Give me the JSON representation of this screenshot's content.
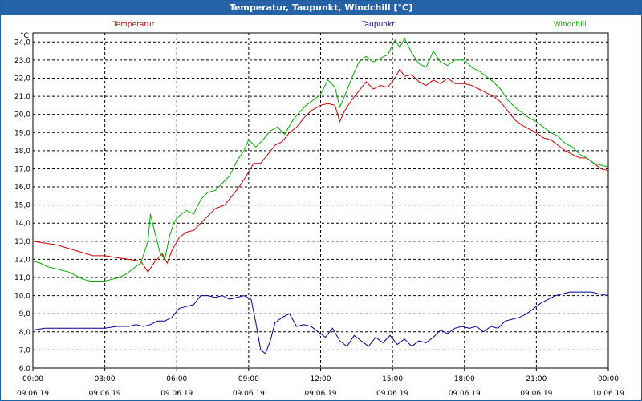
{
  "window": {
    "title": "Temperatur, Taupunkt, Windchill [°C]"
  },
  "chart_data": {
    "type": "line",
    "title": "Temperatur, Taupunkt, Windchill [°C]",
    "ylabel": "°C",
    "xlabel": "",
    "ylim": [
      6.0,
      24.5
    ],
    "xlim": [
      0,
      24
    ],
    "y_ticks": [
      "6,0",
      "7,0",
      "8,0",
      "9,0",
      "10,0",
      "11,0",
      "12,0",
      "13,0",
      "14,0",
      "15,0",
      "16,0",
      "17,0",
      "18,0",
      "19,0",
      "20,0",
      "21,0",
      "22,0",
      "23,0",
      "24,0"
    ],
    "x_ticks": [
      {
        "time": "00:00",
        "date": "09.06.19"
      },
      {
        "time": "03:00",
        "date": "09.06.19"
      },
      {
        "time": "06:00",
        "date": "09.06.19"
      },
      {
        "time": "09:00",
        "date": "09.06.19"
      },
      {
        "time": "12:00",
        "date": "09.06.19"
      },
      {
        "time": "15:00",
        "date": "09.06.19"
      },
      {
        "time": "18:00",
        "date": "09.06.19"
      },
      {
        "time": "21:00",
        "date": "09.06.19"
      },
      {
        "time": "00:00",
        "date": "10.06.19"
      }
    ],
    "grid": true,
    "series": [
      {
        "name": "Temperatur",
        "color": "#cc0000",
        "points": [
          [
            0,
            13.0
          ],
          [
            0.5,
            12.9
          ],
          [
            1,
            12.8
          ],
          [
            1.5,
            12.6
          ],
          [
            2,
            12.4
          ],
          [
            2.5,
            12.2
          ],
          [
            3,
            12.2
          ],
          [
            3.5,
            12.1
          ],
          [
            4,
            12.0
          ],
          [
            4.5,
            11.9
          ],
          [
            4.8,
            11.3
          ],
          [
            5.1,
            11.9
          ],
          [
            5.4,
            12.3
          ],
          [
            5.6,
            11.8
          ],
          [
            5.8,
            12.5
          ],
          [
            6.1,
            13.2
          ],
          [
            6.4,
            13.5
          ],
          [
            6.7,
            13.6
          ],
          [
            7,
            14.0
          ],
          [
            7.3,
            14.4
          ],
          [
            7.6,
            14.8
          ],
          [
            8,
            15.0
          ],
          [
            8.3,
            15.5
          ],
          [
            8.6,
            16.0
          ],
          [
            8.9,
            16.6
          ],
          [
            9.2,
            17.3
          ],
          [
            9.5,
            17.3
          ],
          [
            9.8,
            17.8
          ],
          [
            10.1,
            18.3
          ],
          [
            10.4,
            18.5
          ],
          [
            10.7,
            19.0
          ],
          [
            11,
            19.3
          ],
          [
            11.3,
            19.8
          ],
          [
            11.6,
            20.2
          ],
          [
            12,
            20.5
          ],
          [
            12.3,
            20.6
          ],
          [
            12.6,
            20.5
          ],
          [
            12.8,
            19.6
          ],
          [
            13,
            20.2
          ],
          [
            13.3,
            20.8
          ],
          [
            13.6,
            21.3
          ],
          [
            13.9,
            21.8
          ],
          [
            14.2,
            21.4
          ],
          [
            14.5,
            21.6
          ],
          [
            14.8,
            21.5
          ],
          [
            15.1,
            22.0
          ],
          [
            15.3,
            22.5
          ],
          [
            15.5,
            22.1
          ],
          [
            15.8,
            22.2
          ],
          [
            16.1,
            21.8
          ],
          [
            16.4,
            21.6
          ],
          [
            16.7,
            21.9
          ],
          [
            17,
            21.7
          ],
          [
            17.3,
            22.0
          ],
          [
            17.6,
            21.7
          ],
          [
            18,
            21.7
          ],
          [
            18.3,
            21.6
          ],
          [
            18.6,
            21.4
          ],
          [
            18.9,
            21.2
          ],
          [
            19.2,
            21.0
          ],
          [
            19.5,
            20.7
          ],
          [
            19.8,
            20.2
          ],
          [
            20.1,
            19.7
          ],
          [
            20.4,
            19.4
          ],
          [
            20.7,
            19.2
          ],
          [
            21,
            19.0
          ],
          [
            21.3,
            18.7
          ],
          [
            21.6,
            18.6
          ],
          [
            21.9,
            18.3
          ],
          [
            22.2,
            18.0
          ],
          [
            22.5,
            17.8
          ],
          [
            22.8,
            17.6
          ],
          [
            23.1,
            17.6
          ],
          [
            23.4,
            17.3
          ],
          [
            23.7,
            17.0
          ],
          [
            24,
            16.9
          ]
        ]
      },
      {
        "name": "Taupunkt",
        "color": "#000099",
        "points": [
          [
            0,
            8.1
          ],
          [
            0.5,
            8.2
          ],
          [
            1,
            8.2
          ],
          [
            1.5,
            8.2
          ],
          [
            2,
            8.2
          ],
          [
            2.5,
            8.2
          ],
          [
            3,
            8.2
          ],
          [
            3.5,
            8.3
          ],
          [
            4,
            8.3
          ],
          [
            4.3,
            8.4
          ],
          [
            4.6,
            8.3
          ],
          [
            4.9,
            8.4
          ],
          [
            5.2,
            8.6
          ],
          [
            5.5,
            8.6
          ],
          [
            5.8,
            8.8
          ],
          [
            6.1,
            9.3
          ],
          [
            6.4,
            9.4
          ],
          [
            6.7,
            9.5
          ],
          [
            7,
            10.0
          ],
          [
            7.3,
            10.0
          ],
          [
            7.6,
            9.9
          ],
          [
            7.9,
            10.0
          ],
          [
            8.2,
            9.8
          ],
          [
            8.5,
            9.9
          ],
          [
            8.8,
            10.0
          ],
          [
            9.1,
            9.8
          ],
          [
            9.3,
            8.5
          ],
          [
            9.5,
            7.0
          ],
          [
            9.7,
            6.8
          ],
          [
            9.9,
            7.5
          ],
          [
            10.1,
            8.5
          ],
          [
            10.4,
            8.8
          ],
          [
            10.7,
            9.0
          ],
          [
            11,
            8.3
          ],
          [
            11.3,
            8.4
          ],
          [
            11.6,
            8.3
          ],
          [
            11.9,
            8.0
          ],
          [
            12.2,
            7.7
          ],
          [
            12.5,
            8.2
          ],
          [
            12.8,
            7.5
          ],
          [
            13.1,
            7.2
          ],
          [
            13.4,
            7.8
          ],
          [
            13.7,
            7.5
          ],
          [
            14,
            7.2
          ],
          [
            14.3,
            7.7
          ],
          [
            14.6,
            7.4
          ],
          [
            14.9,
            7.8
          ],
          [
            15.2,
            7.3
          ],
          [
            15.5,
            7.6
          ],
          [
            15.8,
            7.2
          ],
          [
            16.1,
            7.5
          ],
          [
            16.4,
            7.4
          ],
          [
            16.7,
            7.7
          ],
          [
            17,
            8.1
          ],
          [
            17.3,
            7.9
          ],
          [
            17.6,
            8.2
          ],
          [
            17.9,
            8.3
          ],
          [
            18.2,
            8.2
          ],
          [
            18.5,
            8.3
          ],
          [
            18.8,
            8.0
          ],
          [
            19.1,
            8.3
          ],
          [
            19.4,
            8.2
          ],
          [
            19.7,
            8.6
          ],
          [
            20,
            8.7
          ],
          [
            20.3,
            8.8
          ],
          [
            20.6,
            9.0
          ],
          [
            20.9,
            9.3
          ],
          [
            21.2,
            9.6
          ],
          [
            21.5,
            9.8
          ],
          [
            21.8,
            10.0
          ],
          [
            22.1,
            10.1
          ],
          [
            22.4,
            10.2
          ],
          [
            22.7,
            10.2
          ],
          [
            23,
            10.2
          ],
          [
            23.3,
            10.2
          ],
          [
            23.6,
            10.1
          ],
          [
            24,
            10.0
          ]
        ]
      },
      {
        "name": "Windchill",
        "color": "#00aa00",
        "points": [
          [
            0,
            11.9
          ],
          [
            0.3,
            11.8
          ],
          [
            0.6,
            11.6
          ],
          [
            0.9,
            11.5
          ],
          [
            1.2,
            11.4
          ],
          [
            1.5,
            11.3
          ],
          [
            1.8,
            11.1
          ],
          [
            2.1,
            10.9
          ],
          [
            2.4,
            10.8
          ],
          [
            2.7,
            10.8
          ],
          [
            3,
            10.8
          ],
          [
            3.3,
            10.9
          ],
          [
            3.6,
            11.0
          ],
          [
            3.9,
            11.2
          ],
          [
            4.2,
            11.5
          ],
          [
            4.5,
            11.8
          ],
          [
            4.8,
            13.0
          ],
          [
            4.9,
            14.5
          ],
          [
            5.1,
            13.4
          ],
          [
            5.3,
            12.4
          ],
          [
            5.5,
            12.0
          ],
          [
            5.7,
            13.3
          ],
          [
            5.9,
            14.1
          ],
          [
            6.1,
            14.4
          ],
          [
            6.4,
            14.7
          ],
          [
            6.7,
            14.5
          ],
          [
            7,
            15.3
          ],
          [
            7.3,
            15.7
          ],
          [
            7.6,
            15.8
          ],
          [
            7.9,
            16.2
          ],
          [
            8.2,
            16.6
          ],
          [
            8.5,
            17.4
          ],
          [
            8.8,
            18.0
          ],
          [
            9,
            18.6
          ],
          [
            9.3,
            18.2
          ],
          [
            9.6,
            18.6
          ],
          [
            9.9,
            19.1
          ],
          [
            10.2,
            19.3
          ],
          [
            10.5,
            18.9
          ],
          [
            10.8,
            19.6
          ],
          [
            11.1,
            20.1
          ],
          [
            11.4,
            20.5
          ],
          [
            11.7,
            20.8
          ],
          [
            12,
            21.1
          ],
          [
            12.3,
            21.9
          ],
          [
            12.6,
            21.5
          ],
          [
            12.8,
            20.4
          ],
          [
            13,
            21.0
          ],
          [
            13.3,
            22.0
          ],
          [
            13.6,
            22.9
          ],
          [
            13.9,
            23.2
          ],
          [
            14.2,
            22.9
          ],
          [
            14.5,
            23.1
          ],
          [
            14.8,
            23.3
          ],
          [
            15.1,
            24.1
          ],
          [
            15.3,
            23.7
          ],
          [
            15.5,
            24.2
          ],
          [
            15.8,
            23.4
          ],
          [
            16.1,
            22.8
          ],
          [
            16.4,
            22.6
          ],
          [
            16.7,
            23.5
          ],
          [
            17,
            22.9
          ],
          [
            17.3,
            22.7
          ],
          [
            17.6,
            23.0
          ],
          [
            18,
            23.0
          ],
          [
            18.3,
            22.6
          ],
          [
            18.6,
            22.4
          ],
          [
            18.9,
            22.1
          ],
          [
            19.2,
            21.8
          ],
          [
            19.5,
            21.4
          ],
          [
            19.8,
            20.8
          ],
          [
            20.1,
            20.4
          ],
          [
            20.4,
            20.1
          ],
          [
            20.7,
            19.8
          ],
          [
            21,
            19.6
          ],
          [
            21.3,
            19.3
          ],
          [
            21.6,
            19.0
          ],
          [
            21.9,
            18.8
          ],
          [
            22.2,
            18.4
          ],
          [
            22.5,
            18.2
          ],
          [
            22.8,
            17.8
          ],
          [
            23.1,
            17.6
          ],
          [
            23.4,
            17.3
          ],
          [
            23.7,
            17.2
          ],
          [
            24,
            17.1
          ]
        ]
      }
    ]
  }
}
